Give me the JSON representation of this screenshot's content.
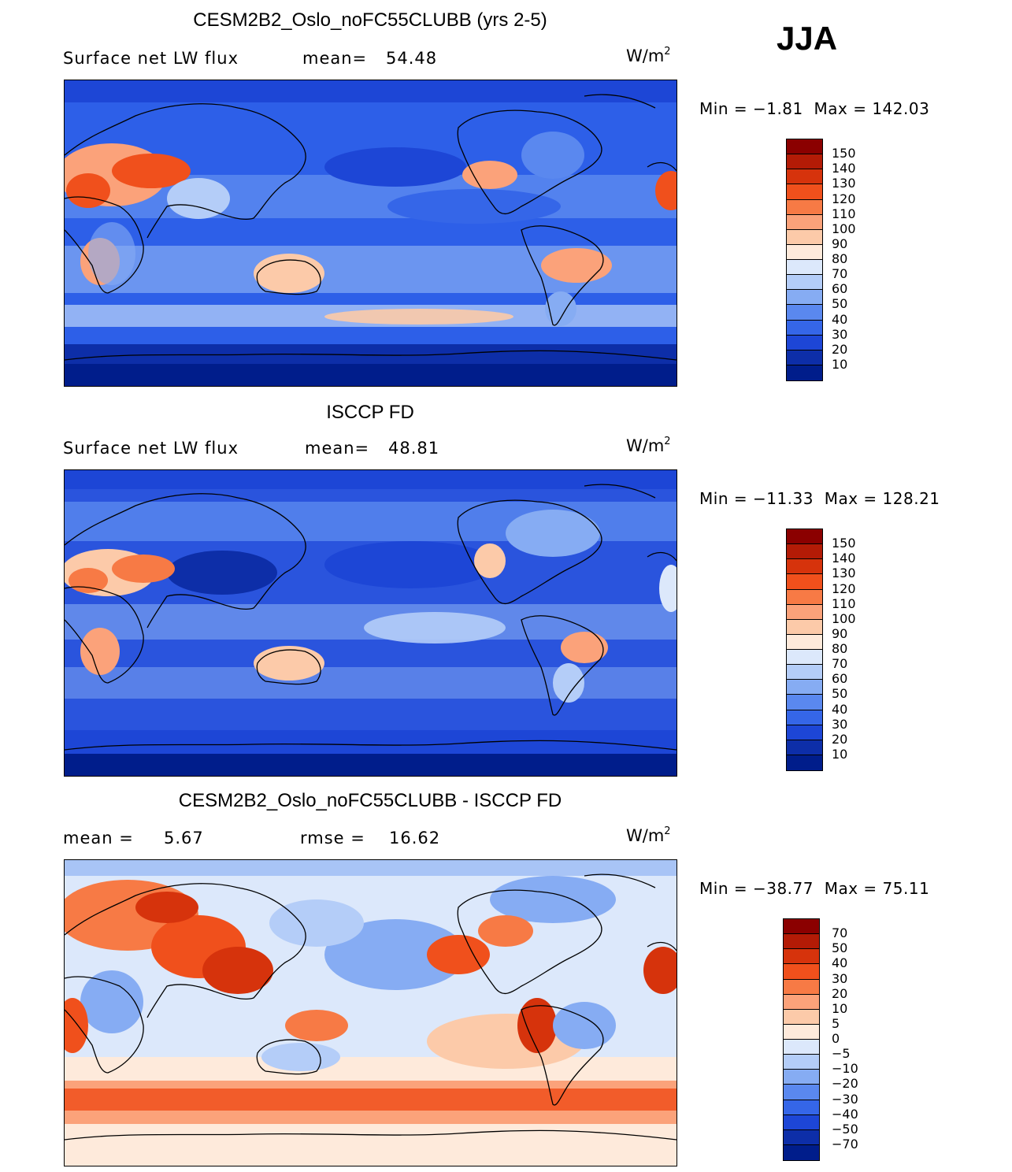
{
  "season": "JJA",
  "units_label": "W/m",
  "units_exp": "2",
  "land": {
    "coast_color": "#000000"
  },
  "panels": [
    {
      "id": "model",
      "title": "CESM2B2_Oslo_noFC55CLUBB (yrs 2-5)",
      "left_label": "Surface net LW flux",
      "stat1_label": "mean=",
      "stat1_value": "54.48",
      "stat2_label": "",
      "stat2_value": "",
      "min_label": "Min = ",
      "min_value": "−1.81",
      "max_label": "Max = ",
      "max_value": "142.03",
      "ocean_base": "#2d5fe8"
    },
    {
      "id": "obs",
      "title": "ISCCP FD",
      "left_label": "Surface net LW flux",
      "stat1_label": "mean=",
      "stat1_value": "48.81",
      "stat2_label": "",
      "stat2_value": "",
      "min_label": "Min = ",
      "min_value": "−11.33",
      "max_label": "Max = ",
      "max_value": "128.21",
      "ocean_base": "#2a54dd"
    },
    {
      "id": "diff",
      "title": "CESM2B2_Oslo_noFC55CLUBB - ISCCP FD",
      "left_label": "",
      "stat1_label": "mean =",
      "stat1_value": "5.67",
      "stat2_label": "rmse =",
      "stat2_value": "16.62",
      "min_label": "Min = ",
      "min_value": "−38.77",
      "max_label": "Max = ",
      "max_value": "75.11",
      "ocean_base": "#c9dcfb"
    }
  ],
  "colorbars": {
    "abs": {
      "labels": [
        "150",
        "140",
        "130",
        "120",
        "110",
        "100",
        "90",
        "80",
        "70",
        "60",
        "50",
        "40",
        "30",
        "20",
        "10"
      ],
      "colors": [
        "#8b0000",
        "#b31b06",
        "#d6330c",
        "#f0501c",
        "#f77a45",
        "#fba27a",
        "#fccaa9",
        "#feeadb",
        "#dce8fb",
        "#b4cdf8",
        "#86acf3",
        "#5a88ef",
        "#3566e8",
        "#1d46d6",
        "#0d2ea8",
        "#001d8b"
      ]
    },
    "diff": {
      "labels": [
        "70",
        "50",
        "40",
        "30",
        "20",
        "10",
        "5",
        "0",
        "−5",
        "−10",
        "−20",
        "−30",
        "−40",
        "−50",
        "−70"
      ],
      "colors": [
        "#8b0000",
        "#b31b06",
        "#d6330c",
        "#f0501c",
        "#f77a45",
        "#fba27a",
        "#fccaa9",
        "#feeadb",
        "#dce8fb",
        "#b4cdf8",
        "#86acf3",
        "#5a88ef",
        "#3566e8",
        "#1d46d6",
        "#0d2ea8",
        "#001d8b"
      ]
    }
  }
}
